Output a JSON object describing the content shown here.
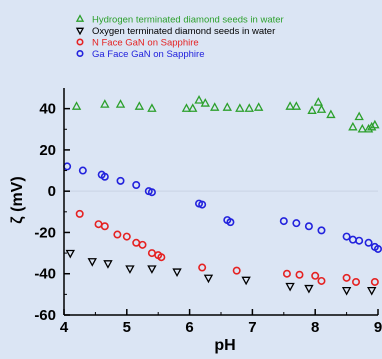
{
  "chart_data": {
    "type": "scatter",
    "title": "",
    "xlabel": "pH",
    "ylabel": "ζ (mV)",
    "xlim": [
      4,
      9
    ],
    "ylim": [
      -60,
      50
    ],
    "xticks": [
      4,
      5,
      6,
      7,
      8,
      9
    ],
    "yticks": [
      40,
      20,
      0,
      -20,
      -40,
      -60
    ],
    "tick_labels_x": [
      "4",
      "5",
      "6",
      "7",
      "8",
      "9"
    ],
    "tick_labels_y": [
      "40",
      "20",
      "0",
      "-20",
      "-40",
      "-60"
    ],
    "grid": false,
    "legend_position": "top-left",
    "series": [
      {
        "name": "Hydrogen terminated diamond seeds in water",
        "marker": "triangle-up",
        "color": "#2ca02c",
        "points": [
          [
            4.2,
            41
          ],
          [
            4.65,
            42
          ],
          [
            4.9,
            42
          ],
          [
            5.2,
            41
          ],
          [
            5.4,
            40
          ],
          [
            5.95,
            40
          ],
          [
            6.05,
            40
          ],
          [
            6.15,
            44
          ],
          [
            6.25,
            42.5
          ],
          [
            6.4,
            40.5
          ],
          [
            6.6,
            40.5
          ],
          [
            6.8,
            40
          ],
          [
            6.95,
            40
          ],
          [
            7.1,
            40.5
          ],
          [
            7.6,
            41
          ],
          [
            7.7,
            41
          ],
          [
            7.95,
            39
          ],
          [
            8.05,
            43
          ],
          [
            8.1,
            39.5
          ],
          [
            8.25,
            37
          ],
          [
            8.6,
            31
          ],
          [
            8.7,
            36
          ],
          [
            8.75,
            30
          ],
          [
            8.85,
            30
          ],
          [
            8.9,
            31
          ],
          [
            8.95,
            32
          ]
        ]
      },
      {
        "name": "Oxygen terminated diamond seeds in water",
        "marker": "triangle-down",
        "color": "#000000",
        "points": [
          [
            4.1,
            -30
          ],
          [
            4.45,
            -34
          ],
          [
            4.7,
            -35
          ],
          [
            5.05,
            -37.5
          ],
          [
            5.4,
            -37.5
          ],
          [
            5.8,
            -39
          ],
          [
            6.3,
            -42
          ],
          [
            6.9,
            -43
          ],
          [
            7.6,
            -46
          ],
          [
            7.9,
            -47
          ],
          [
            8.5,
            -48
          ],
          [
            8.9,
            -48
          ]
        ]
      },
      {
        "name": "N Face GaN on Sapphire",
        "marker": "circle",
        "color": "#e52222",
        "points": [
          [
            4.25,
            -11
          ],
          [
            4.55,
            -16
          ],
          [
            4.65,
            -17
          ],
          [
            4.85,
            -21
          ],
          [
            5.0,
            -22
          ],
          [
            5.15,
            -25
          ],
          [
            5.25,
            -26
          ],
          [
            5.4,
            -30
          ],
          [
            5.5,
            -31
          ],
          [
            5.55,
            -32
          ],
          [
            6.2,
            -37
          ],
          [
            6.75,
            -38.5
          ],
          [
            7.55,
            -40
          ],
          [
            7.75,
            -40.5
          ],
          [
            8.0,
            -41
          ],
          [
            8.1,
            -43.5
          ],
          [
            8.5,
            -42
          ],
          [
            8.65,
            -44
          ],
          [
            8.95,
            -44
          ]
        ]
      },
      {
        "name": "Ga Face GaN on Sapphire",
        "marker": "circle",
        "color": "#2222dd",
        "points": [
          [
            4.05,
            12
          ],
          [
            4.3,
            10
          ],
          [
            4.6,
            8
          ],
          [
            4.65,
            7
          ],
          [
            4.9,
            5
          ],
          [
            5.15,
            3
          ],
          [
            5.35,
            0
          ],
          [
            5.4,
            -0.5
          ],
          [
            6.15,
            -6
          ],
          [
            6.2,
            -6.5
          ],
          [
            6.6,
            -14
          ],
          [
            6.65,
            -15
          ],
          [
            7.5,
            -14.5
          ],
          [
            7.7,
            -15.5
          ],
          [
            7.9,
            -17
          ],
          [
            8.1,
            -19
          ],
          [
            8.5,
            -22
          ],
          [
            8.6,
            -23.5
          ],
          [
            8.7,
            -24
          ],
          [
            8.85,
            -25
          ],
          [
            8.95,
            -27
          ],
          [
            9.0,
            -28
          ]
        ]
      }
    ]
  }
}
